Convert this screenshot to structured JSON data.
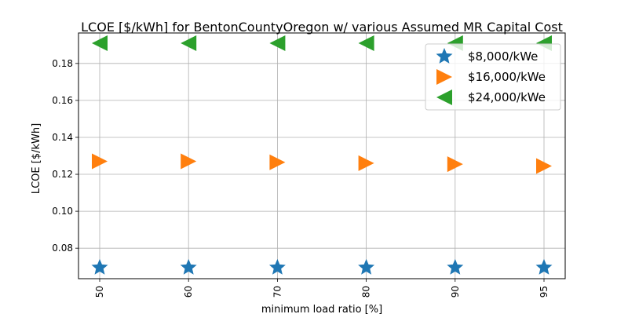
{
  "chart_data": {
    "type": "scatter",
    "title": "LCOE [$/kWh] for BentonCountyOregon w/ various Assumed MR Capital Cost",
    "xlabel": "minimum load ratio [%]",
    "ylabel": "LCOE [$/kWh]",
    "categories": [
      "50",
      "60",
      "70",
      "80",
      "90",
      "95"
    ],
    "ylim": [
      0.0635,
      0.1965
    ],
    "yticks": [
      "0.08",
      "0.10",
      "0.12",
      "0.14",
      "0.16",
      "0.18"
    ],
    "grid": true,
    "legend_position": "top-right",
    "series": [
      {
        "name": "$8,000/kWe",
        "marker": "star",
        "color": "#1f77b4",
        "values": [
          0.0695,
          0.0695,
          0.0695,
          0.0695,
          0.0695,
          0.0695
        ]
      },
      {
        "name": "$16,000/kWe",
        "marker": "triangle-right",
        "color": "#ff7f0e",
        "values": [
          0.127,
          0.127,
          0.1265,
          0.126,
          0.1255,
          0.1245
        ]
      },
      {
        "name": "$24,000/kWe",
        "marker": "triangle-left",
        "color": "#2ca02c",
        "values": [
          0.191,
          0.191,
          0.191,
          0.191,
          0.191,
          0.191
        ]
      }
    ]
  }
}
